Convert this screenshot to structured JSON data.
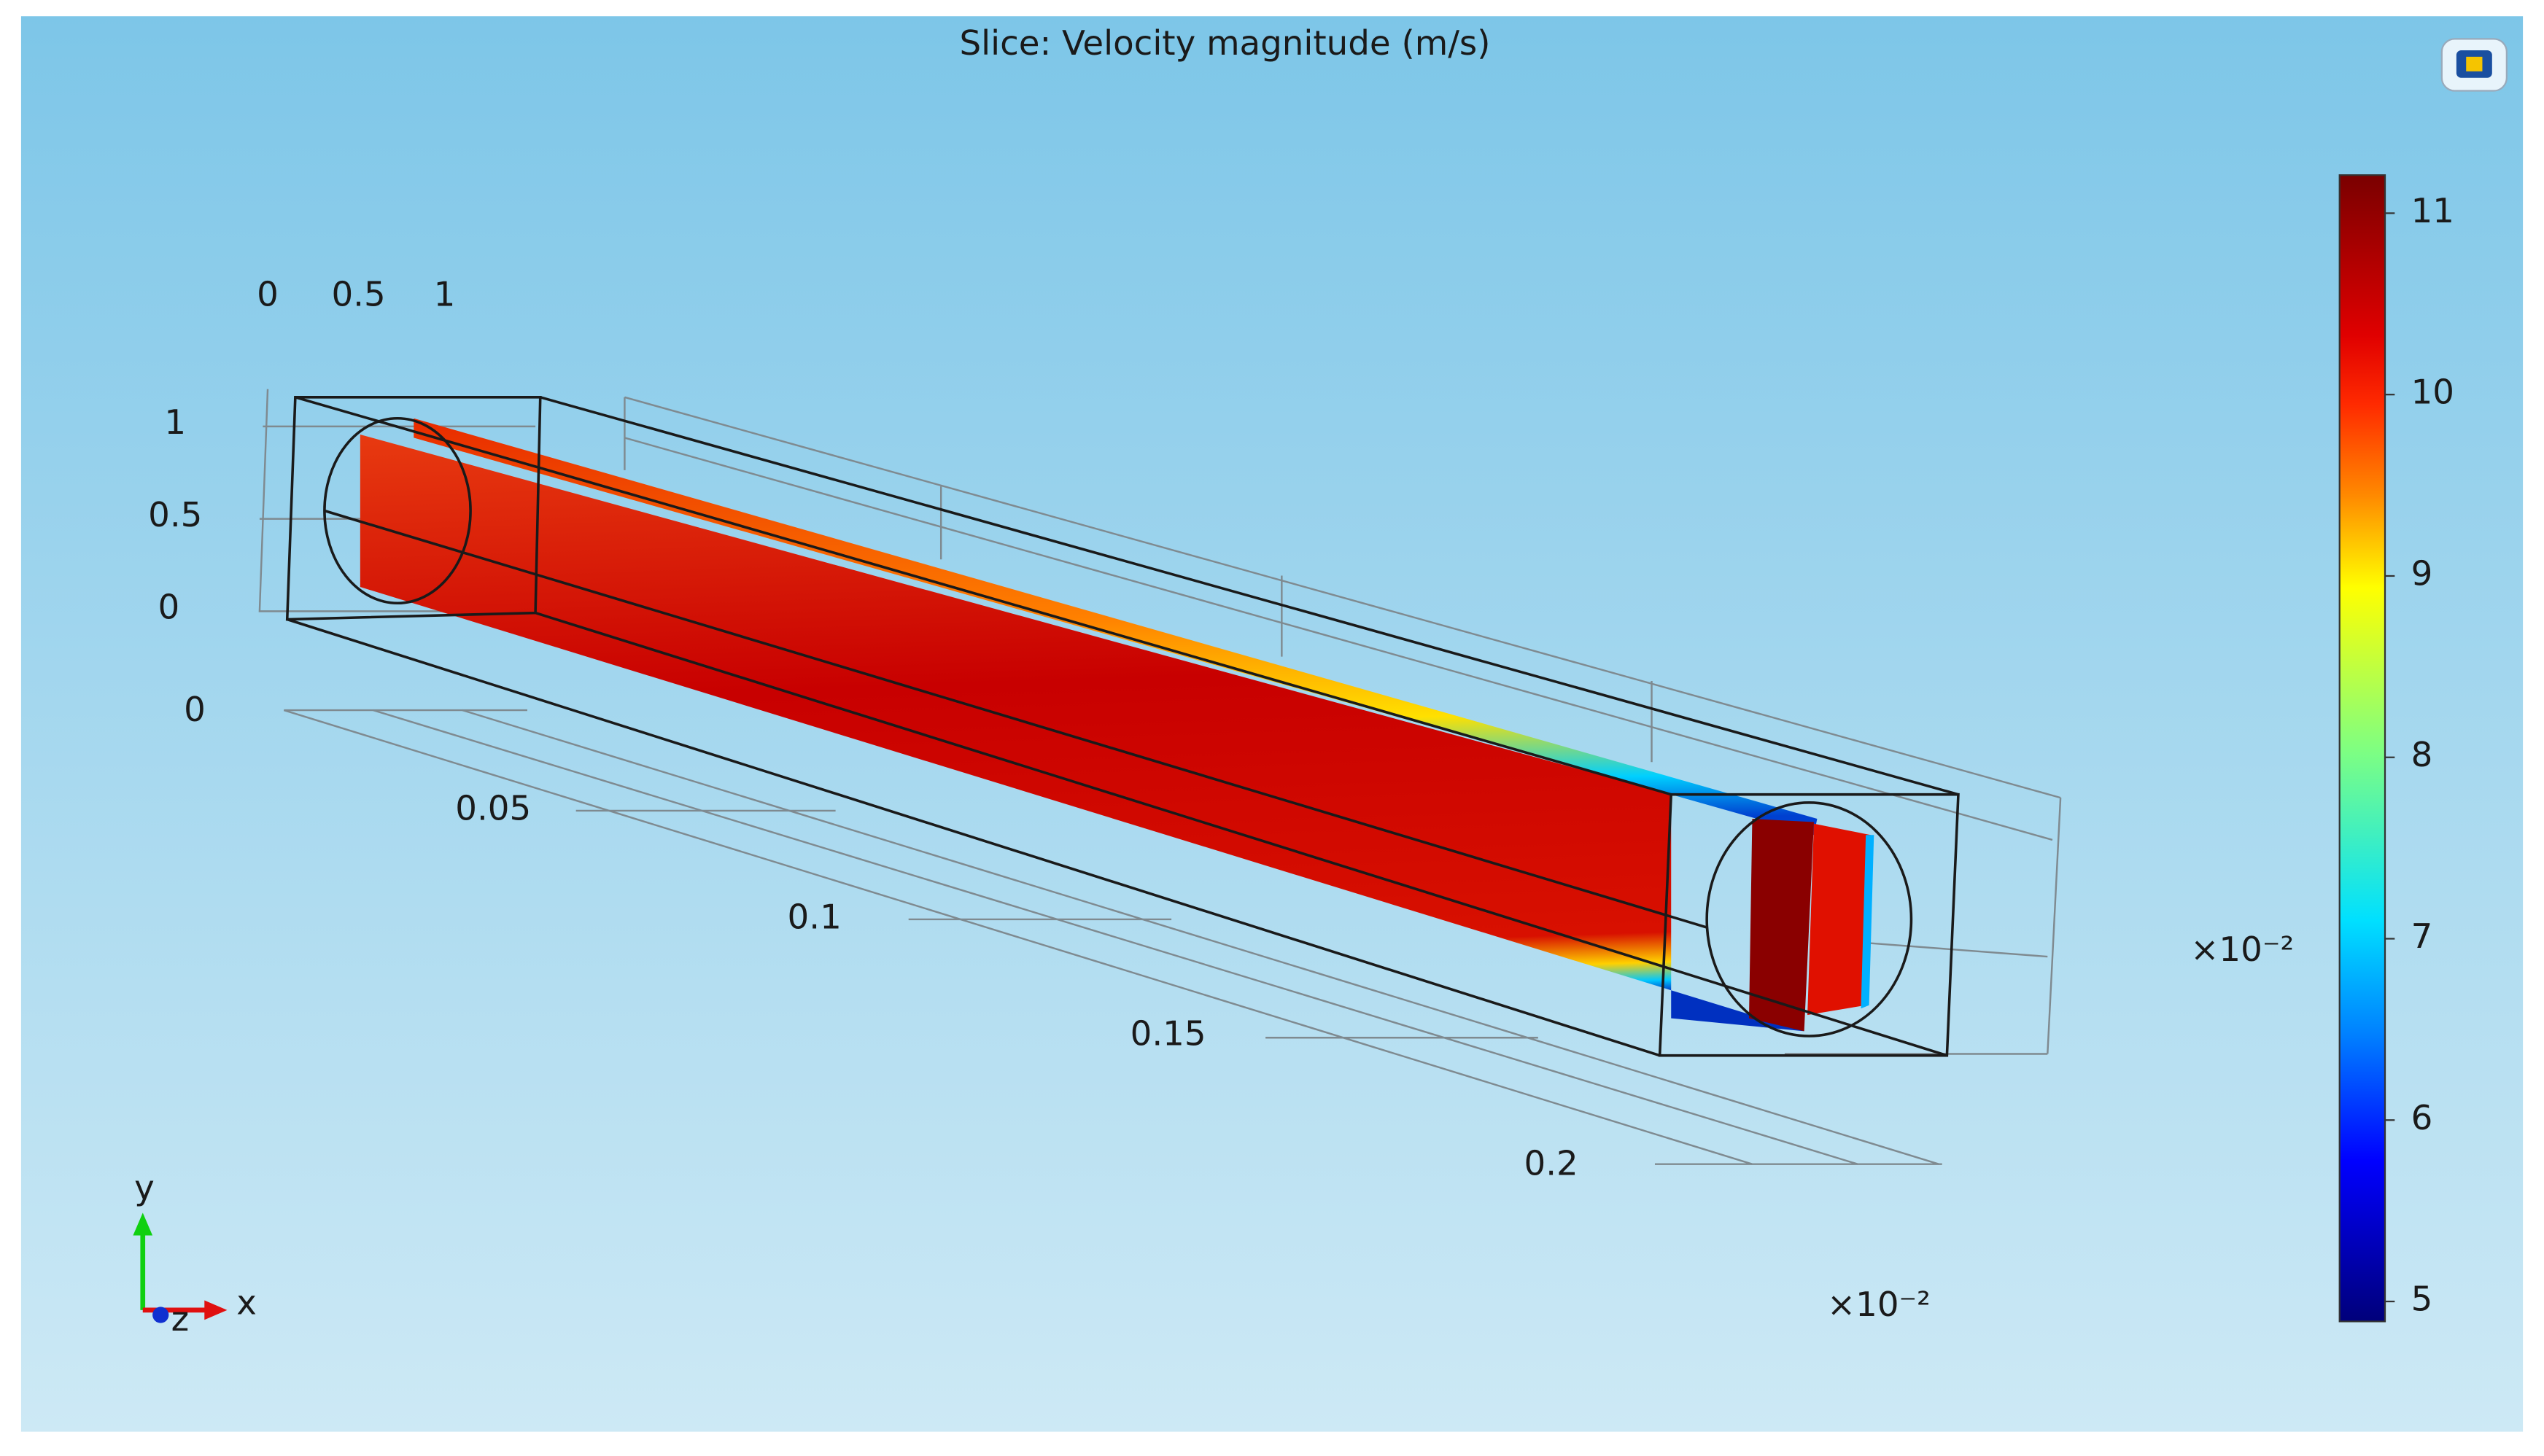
{
  "title": "Slice: Velocity magnitude (m/s)",
  "axes": {
    "z_ticks": [
      0,
      0.5,
      1
    ],
    "y_ticks": [
      1,
      0.5,
      0
    ],
    "x_ticks": [
      0,
      0.05,
      0.1,
      0.15,
      0.2
    ],
    "multiplier": "×10⁻²"
  },
  "triad": {
    "y": "y",
    "x": "x",
    "z": "z"
  },
  "colorbar": {
    "range": [
      4.89,
      11.21
    ],
    "ticks": [
      5,
      6,
      7,
      8,
      9,
      10,
      11
    ],
    "multiplier": "×10⁻²"
  }
}
